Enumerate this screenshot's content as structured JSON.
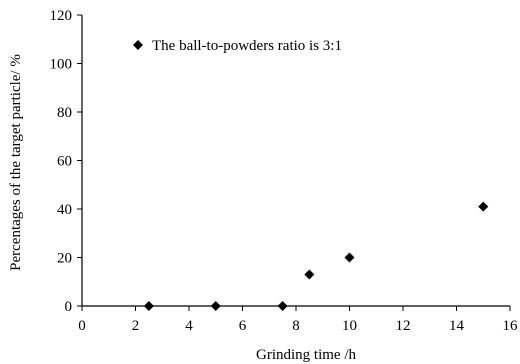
{
  "chart_data": {
    "type": "scatter",
    "xlabel": "Grinding time /h",
    "ylabel": "Percentages of the target particle/ %",
    "xlim": [
      0,
      16
    ],
    "ylim": [
      0,
      120
    ],
    "x_ticks": [
      "0",
      "2",
      "4",
      "6",
      "8",
      "10",
      "12",
      "14",
      "16"
    ],
    "y_ticks": [
      "0",
      "20",
      "40",
      "60",
      "80",
      "100",
      "120"
    ],
    "grid": false,
    "legend_position": "top-left",
    "series": [
      {
        "name": "The ball-to-powders ratio is 3:1",
        "marker": "diamond",
        "color": "#000000",
        "points": [
          {
            "x": 2.5,
            "y": 0
          },
          {
            "x": 5,
            "y": 0
          },
          {
            "x": 7.5,
            "y": 0
          },
          {
            "x": 8.5,
            "y": 13
          },
          {
            "x": 10,
            "y": 20
          },
          {
            "x": 15,
            "y": 41
          }
        ]
      }
    ]
  }
}
